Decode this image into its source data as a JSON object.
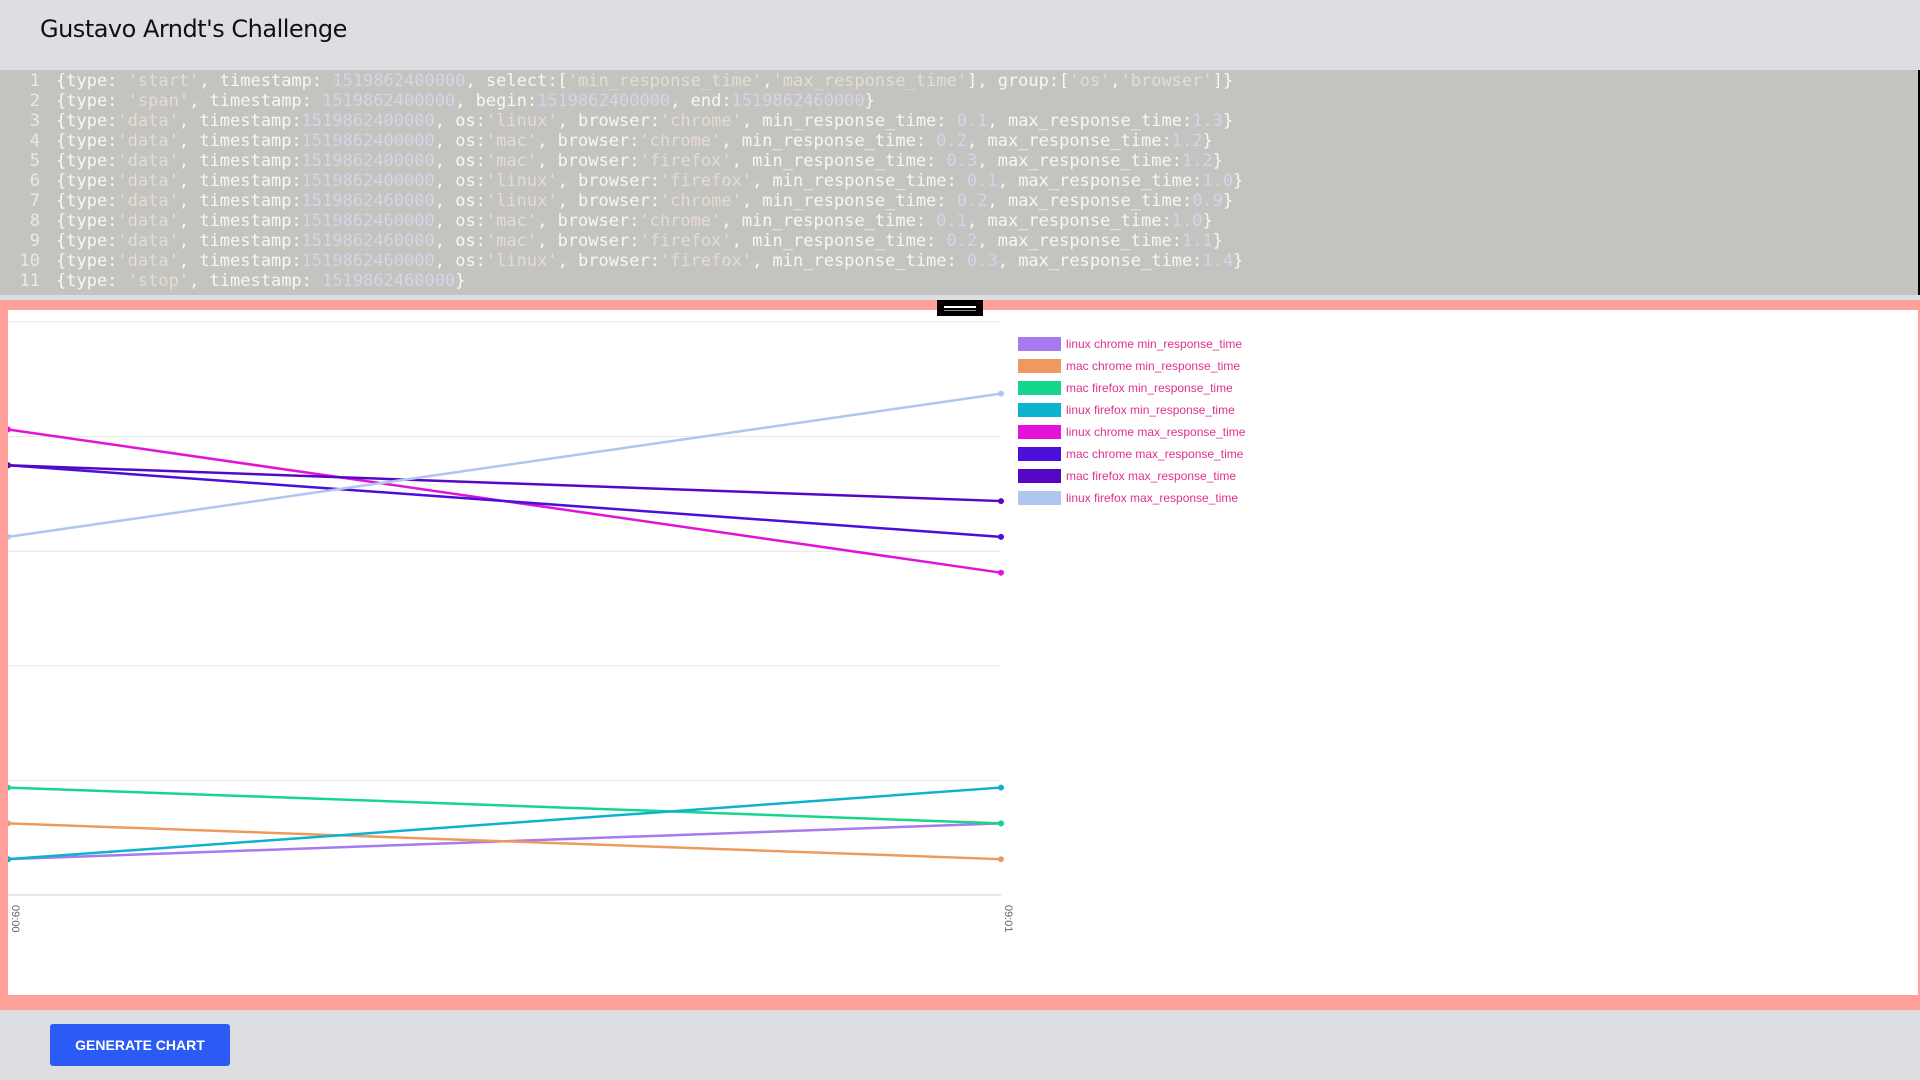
{
  "header": {
    "title": "Gustavo Arndt's Challenge"
  },
  "editor": {
    "lines": [
      {
        "num": "1",
        "tokens": [
          {
            "t": "{type: ",
            "k": "p"
          },
          {
            "t": "'start'",
            "k": "s"
          },
          {
            "t": ", timestamp: ",
            "k": "p"
          },
          {
            "t": "1519862400000",
            "k": "n"
          },
          {
            "t": ", select:[",
            "k": "p"
          },
          {
            "t": "'min_response_time'",
            "k": "s"
          },
          {
            "t": ",",
            "k": "p"
          },
          {
            "t": "'max_response_time'",
            "k": "s"
          },
          {
            "t": "], group:[",
            "k": "p"
          },
          {
            "t": "'os'",
            "k": "s"
          },
          {
            "t": ",",
            "k": "p"
          },
          {
            "t": "'browser'",
            "k": "s"
          },
          {
            "t": "]}",
            "k": "p"
          }
        ]
      },
      {
        "num": "2",
        "tokens": [
          {
            "t": "{type: ",
            "k": "p"
          },
          {
            "t": "'span'",
            "k": "s"
          },
          {
            "t": ", timestamp: ",
            "k": "p"
          },
          {
            "t": "1519862400000",
            "k": "n"
          },
          {
            "t": ", begin:",
            "k": "p"
          },
          {
            "t": "1519862400000",
            "k": "n"
          },
          {
            "t": ", end:",
            "k": "p"
          },
          {
            "t": "1519862460000",
            "k": "n"
          },
          {
            "t": "}",
            "k": "p"
          }
        ]
      },
      {
        "num": "3",
        "tokens": [
          {
            "t": "{type:",
            "k": "p"
          },
          {
            "t": "'data'",
            "k": "s"
          },
          {
            "t": ", timestamp:",
            "k": "p"
          },
          {
            "t": "1519862400000",
            "k": "n"
          },
          {
            "t": ", os:",
            "k": "p"
          },
          {
            "t": "'linux'",
            "k": "s"
          },
          {
            "t": ", browser:",
            "k": "p"
          },
          {
            "t": "'chrome'",
            "k": "s"
          },
          {
            "t": ", min_response_time: ",
            "k": "p"
          },
          {
            "t": "0.1",
            "k": "n"
          },
          {
            "t": ", max_response_time:",
            "k": "p"
          },
          {
            "t": "1.3",
            "k": "n"
          },
          {
            "t": "}",
            "k": "p"
          }
        ]
      },
      {
        "num": "4",
        "tokens": [
          {
            "t": "{type:",
            "k": "p"
          },
          {
            "t": "'data'",
            "k": "s"
          },
          {
            "t": ", timestamp:",
            "k": "p"
          },
          {
            "t": "1519862400000",
            "k": "n"
          },
          {
            "t": ", os:",
            "k": "p"
          },
          {
            "t": "'mac'",
            "k": "s"
          },
          {
            "t": ", browser:",
            "k": "p"
          },
          {
            "t": "'chrome'",
            "k": "s"
          },
          {
            "t": ", min_response_time: ",
            "k": "p"
          },
          {
            "t": "0.2",
            "k": "n"
          },
          {
            "t": ", max_response_time:",
            "k": "p"
          },
          {
            "t": "1.2",
            "k": "n"
          },
          {
            "t": "}",
            "k": "p"
          }
        ]
      },
      {
        "num": "5",
        "tokens": [
          {
            "t": "{type:",
            "k": "p"
          },
          {
            "t": "'data'",
            "k": "s"
          },
          {
            "t": ", timestamp:",
            "k": "p"
          },
          {
            "t": "1519862400000",
            "k": "n"
          },
          {
            "t": ", os:",
            "k": "p"
          },
          {
            "t": "'mac'",
            "k": "s"
          },
          {
            "t": ", browser:",
            "k": "p"
          },
          {
            "t": "'firefox'",
            "k": "s"
          },
          {
            "t": ", min_response_time: ",
            "k": "p"
          },
          {
            "t": "0.3",
            "k": "n"
          },
          {
            "t": ", max_response_time:",
            "k": "p"
          },
          {
            "t": "1.2",
            "k": "n"
          },
          {
            "t": "}",
            "k": "p"
          }
        ]
      },
      {
        "num": "6",
        "tokens": [
          {
            "t": "{type:",
            "k": "p"
          },
          {
            "t": "'data'",
            "k": "s"
          },
          {
            "t": ", timestamp:",
            "k": "p"
          },
          {
            "t": "1519862400000",
            "k": "n"
          },
          {
            "t": ", os:",
            "k": "p"
          },
          {
            "t": "'linux'",
            "k": "s"
          },
          {
            "t": ", browser:",
            "k": "p"
          },
          {
            "t": "'firefox'",
            "k": "s"
          },
          {
            "t": ", min_response_time: ",
            "k": "p"
          },
          {
            "t": "0.1",
            "k": "n"
          },
          {
            "t": ", max_response_time:",
            "k": "p"
          },
          {
            "t": "1.0",
            "k": "n"
          },
          {
            "t": "}",
            "k": "p"
          }
        ]
      },
      {
        "num": "7",
        "tokens": [
          {
            "t": "{type:",
            "k": "p"
          },
          {
            "t": "'data'",
            "k": "s"
          },
          {
            "t": ", timestamp:",
            "k": "p"
          },
          {
            "t": "1519862460000",
            "k": "n"
          },
          {
            "t": ", os:",
            "k": "p"
          },
          {
            "t": "'linux'",
            "k": "s"
          },
          {
            "t": ", browser:",
            "k": "p"
          },
          {
            "t": "'chrome'",
            "k": "s"
          },
          {
            "t": ", min_response_time: ",
            "k": "p"
          },
          {
            "t": "0.2",
            "k": "n"
          },
          {
            "t": ", max_response_time:",
            "k": "p"
          },
          {
            "t": "0.9",
            "k": "n"
          },
          {
            "t": "}",
            "k": "p"
          }
        ]
      },
      {
        "num": "8",
        "tokens": [
          {
            "t": "{type:",
            "k": "p"
          },
          {
            "t": "'data'",
            "k": "s"
          },
          {
            "t": ", timestamp:",
            "k": "p"
          },
          {
            "t": "1519862460000",
            "k": "n"
          },
          {
            "t": ", os:",
            "k": "p"
          },
          {
            "t": "'mac'",
            "k": "s"
          },
          {
            "t": ", browser:",
            "k": "p"
          },
          {
            "t": "'chrome'",
            "k": "s"
          },
          {
            "t": ", min_response_time: ",
            "k": "p"
          },
          {
            "t": "0.1",
            "k": "n"
          },
          {
            "t": ", max_response_time:",
            "k": "p"
          },
          {
            "t": "1.0",
            "k": "n"
          },
          {
            "t": "}",
            "k": "p"
          }
        ]
      },
      {
        "num": "9",
        "tokens": [
          {
            "t": "{type:",
            "k": "p"
          },
          {
            "t": "'data'",
            "k": "s"
          },
          {
            "t": ", timestamp:",
            "k": "p"
          },
          {
            "t": "1519862460000",
            "k": "n"
          },
          {
            "t": ", os:",
            "k": "p"
          },
          {
            "t": "'mac'",
            "k": "s"
          },
          {
            "t": ", browser:",
            "k": "p"
          },
          {
            "t": "'firefox'",
            "k": "s"
          },
          {
            "t": ", min_response_time: ",
            "k": "p"
          },
          {
            "t": "0.2",
            "k": "n"
          },
          {
            "t": ", max_response_time:",
            "k": "p"
          },
          {
            "t": "1.1",
            "k": "n"
          },
          {
            "t": "}",
            "k": "p"
          }
        ]
      },
      {
        "num": "10",
        "tokens": [
          {
            "t": "{type:",
            "k": "p"
          },
          {
            "t": "'data'",
            "k": "s"
          },
          {
            "t": ", timestamp:",
            "k": "p"
          },
          {
            "t": "1519862460000",
            "k": "n"
          },
          {
            "t": ", os:",
            "k": "p"
          },
          {
            "t": "'linux'",
            "k": "s"
          },
          {
            "t": ", browser:",
            "k": "p"
          },
          {
            "t": "'firefox'",
            "k": "s"
          },
          {
            "t": ", min_response_time: ",
            "k": "p"
          },
          {
            "t": "0.3",
            "k": "n"
          },
          {
            "t": ", max_response_time:",
            "k": "p"
          },
          {
            "t": "1.4",
            "k": "n"
          },
          {
            "t": "}",
            "k": "p"
          }
        ]
      },
      {
        "num": "11",
        "tokens": [
          {
            "t": "{type: ",
            "k": "p"
          },
          {
            "t": "'stop'",
            "k": "s"
          },
          {
            "t": ", timestamp: ",
            "k": "p"
          },
          {
            "t": "1519862460000",
            "k": "n"
          },
          {
            "t": "}",
            "k": "p"
          }
        ]
      }
    ]
  },
  "chart_data": {
    "type": "line",
    "x": [
      "09:00",
      "09:01"
    ],
    "ylim": [
      0,
      1.6
    ],
    "grid": true,
    "legend_placement": "top-right",
    "series": [
      {
        "name": "linux chrome min_response_time",
        "color": "#a87af0",
        "values": [
          0.1,
          0.2
        ]
      },
      {
        "name": "mac chrome min_response_time",
        "color": "#ee9a5e",
        "values": [
          0.2,
          0.1
        ]
      },
      {
        "name": "mac firefox min_response_time",
        "color": "#16d68e",
        "values": [
          0.3,
          0.2
        ]
      },
      {
        "name": "linux firefox min_response_time",
        "color": "#0cb3cc",
        "values": [
          0.1,
          0.3
        ]
      },
      {
        "name": "linux chrome max_response_time",
        "color": "#e312d8",
        "values": [
          1.3,
          0.9
        ]
      },
      {
        "name": "mac chrome max_response_time",
        "color": "#4a0fd9",
        "values": [
          1.2,
          1.0
        ]
      },
      {
        "name": "mac firefox max_response_time",
        "color": "#5408c4",
        "values": [
          1.2,
          1.1
        ]
      },
      {
        "name": "linux firefox max_response_time",
        "color": "#b0c6f0",
        "values": [
          1.0,
          1.4
        ]
      }
    ]
  },
  "footer": {
    "generate_label": "GENERATE CHART"
  }
}
